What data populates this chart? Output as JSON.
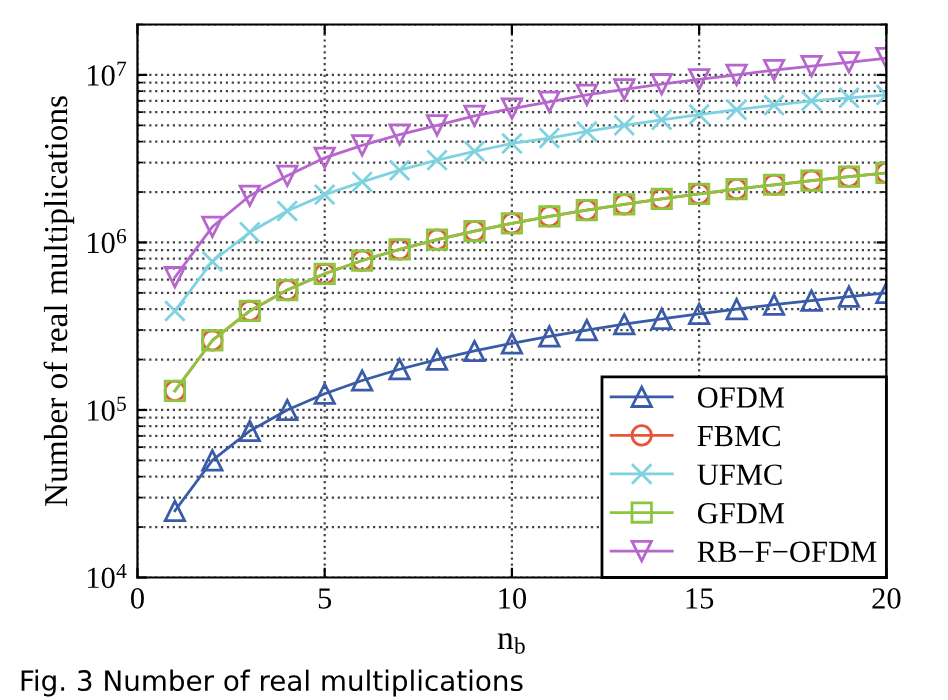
{
  "chart_data": {
    "type": "line",
    "xlabel": "n$_{b}$",
    "ylabel": "Number of real multiplications",
    "x": [
      1,
      2,
      3,
      4,
      5,
      6,
      7,
      8,
      9,
      10,
      11,
      12,
      13,
      14,
      15,
      16,
      17,
      18,
      19,
      20
    ],
    "xlim": [
      0,
      20
    ],
    "xticks": [
      0,
      5,
      10,
      15,
      20
    ],
    "log": "y",
    "ylim": [
      10000,
      20000000
    ],
    "yticks": [
      {
        "value": 10000,
        "label": "10$^{4}$"
      },
      {
        "value": 100000,
        "label": "10$^{5}$"
      },
      {
        "value": 1000000,
        "label": "10$^{6}$"
      },
      {
        "value": 10000000,
        "label": "10$^{7}$"
      }
    ],
    "grid": true,
    "legend": "bottom right",
    "line_style": "solid",
    "series": [
      {
        "name": "OFDM",
        "color": "#3a5ba8",
        "marker": "triangle",
        "values": [
          25000,
          50000,
          75000,
          100000,
          125000,
          150000,
          175000,
          200000,
          225000,
          250000,
          275000,
          300000,
          325000,
          350000,
          375000,
          400000,
          425000,
          450000,
          475000,
          500000
        ]
      },
      {
        "name": "FBMC",
        "color": "#e8553a",
        "marker": "circle",
        "values": [
          130000,
          260000,
          390000,
          520000,
          650000,
          780000,
          910000,
          1040000,
          1170000,
          1300000,
          1430000,
          1560000,
          1690000,
          1820000,
          1950000,
          2080000,
          2210000,
          2340000,
          2470000,
          2600000
        ]
      },
      {
        "name": "UFMC",
        "color": "#7fd3e0",
        "marker": "cross",
        "values": [
          390000,
          770000,
          1150000,
          1540000,
          1930000,
          2300000,
          2700000,
          3100000,
          3500000,
          3900000,
          4200000,
          4600000,
          5000000,
          5400000,
          5800000,
          6200000,
          6600000,
          7000000,
          7300000,
          7600000
        ]
      },
      {
        "name": "GFDM",
        "color": "#8cc63f",
        "marker": "square",
        "values": [
          130000,
          260000,
          390000,
          520000,
          650000,
          780000,
          910000,
          1040000,
          1170000,
          1300000,
          1430000,
          1560000,
          1690000,
          1820000,
          1950000,
          2080000,
          2210000,
          2340000,
          2470000,
          2600000
        ]
      },
      {
        "name": "RB−F−OFDM",
        "color": "#b666cc",
        "marker": "triangle_down",
        "values": [
          620000,
          1240000,
          1900000,
          2500000,
          3200000,
          3800000,
          4400000,
          5000000,
          5700000,
          6300000,
          6900000,
          7600000,
          8200000,
          8800000,
          9400000,
          10000000,
          10700000,
          11300000,
          11900000,
          12600000
        ]
      }
    ],
    "annotations": [
      "Fig. 3 Number of real multiplications"
    ]
  }
}
